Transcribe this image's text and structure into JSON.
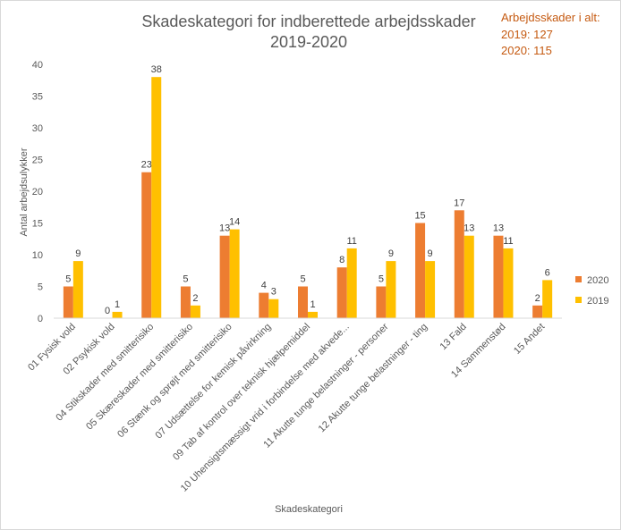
{
  "chart_data": {
    "type": "bar",
    "title_lines": [
      "Skadeskategori for indberettede arbejdsskader",
      "2019-2020"
    ],
    "xlabel": "Skadeskategori",
    "ylabel": "Antal arbejdsulykker",
    "ylim": [
      0,
      40
    ],
    "yticks": [
      0,
      5,
      10,
      15,
      20,
      25,
      30,
      35,
      40
    ],
    "grid": false,
    "legend_position": "right",
    "categories": [
      "01 Fysisk vold",
      "02 Psykisk vold",
      "04 Stikskader med smitterisiko",
      "05 Skæreskader med smitterisiko",
      "06 Stænk og sprøjt med smitterisiko",
      "07 Udsættelse for kemisk påvirkning",
      "09 Tab af kontrol over teknisk hjælpemiddel",
      "10 Uhensigtsmæssigt vrid i forbindelse med akvede...",
      "11 Akutte tunge belastninger - personer",
      "12 Akutte tunge belastninger - ting",
      "13 Fald",
      "14 Sammenstød",
      "15 Andet"
    ],
    "series": [
      {
        "name": "2020",
        "color": "#ed7d31",
        "values": [
          5,
          0,
          23,
          5,
          13,
          4,
          5,
          8,
          5,
          15,
          17,
          13,
          2
        ]
      },
      {
        "name": "2019",
        "color": "#ffc000",
        "values": [
          9,
          1,
          38,
          2,
          14,
          3,
          1,
          11,
          9,
          9,
          13,
          11,
          6
        ]
      }
    ],
    "annotation": {
      "heading": "Arbejdsskader i alt:",
      "lines": [
        "2019:  127",
        "2020:  115"
      ]
    }
  }
}
